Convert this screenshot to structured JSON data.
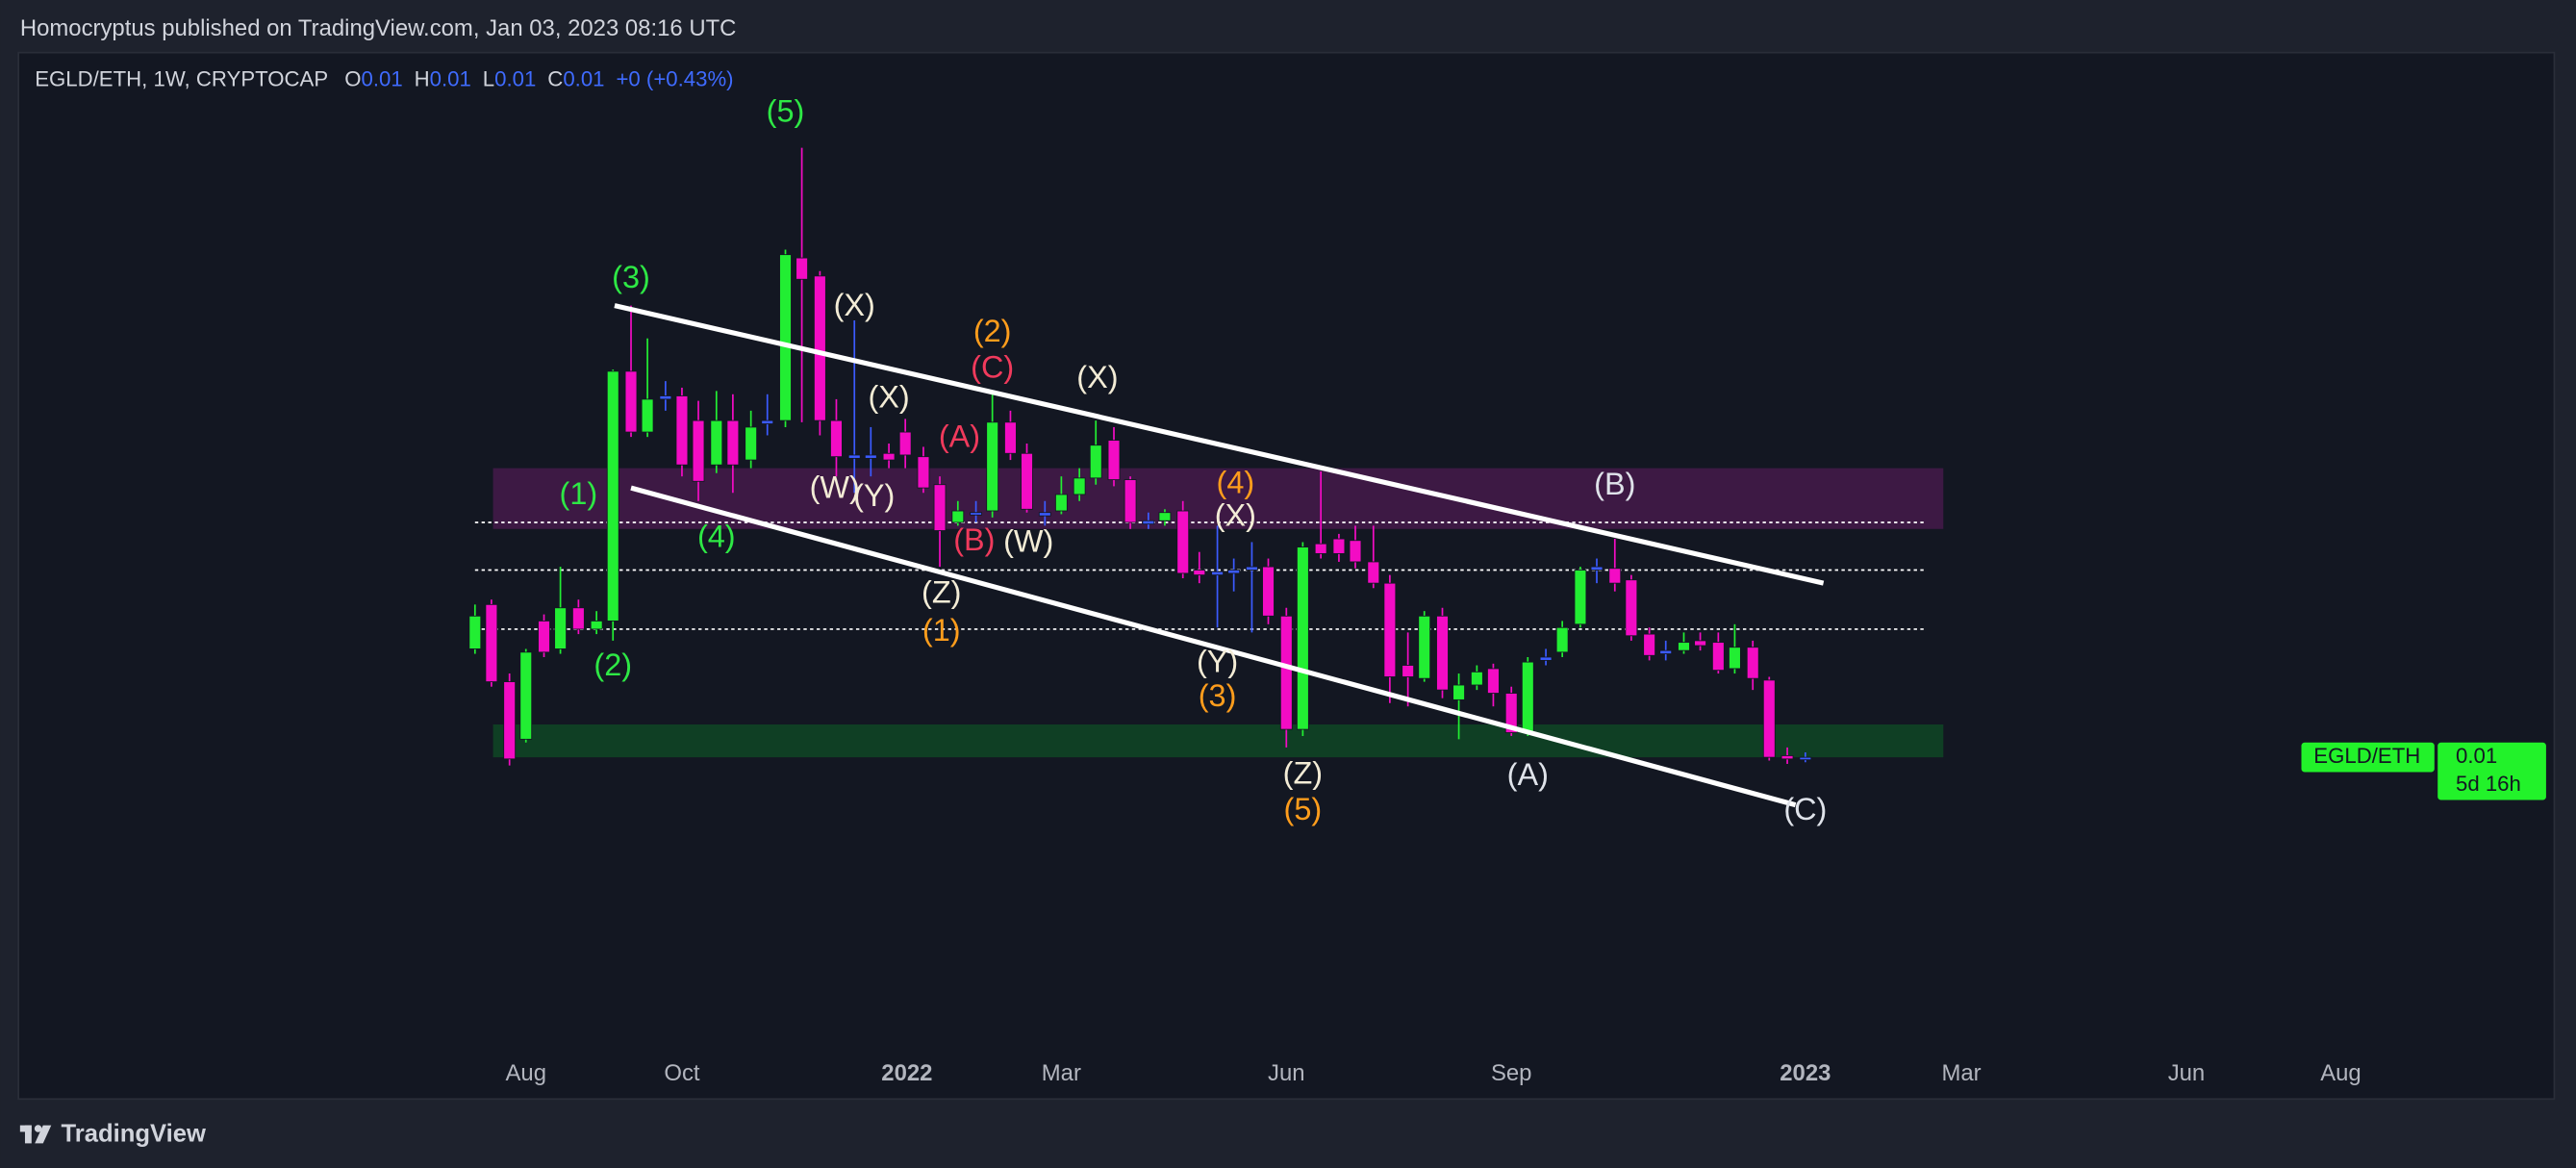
{
  "header": {
    "attribution": "Homocryptus published on TradingView.com, Jan 03, 2023 08:16 UTC"
  },
  "legend": {
    "symbol": "EGLD/ETH, 1W, CRYPTOCAP",
    "ohlc": [
      {
        "label": "O",
        "value": "0.01"
      },
      {
        "label": "H",
        "value": "0.01"
      },
      {
        "label": "L",
        "value": "0.01"
      },
      {
        "label": "C",
        "value": "0.01"
      }
    ],
    "change": "+0 (+0.43%)"
  },
  "waves": [
    "(5)",
    "(3)",
    "(1)",
    "(4)",
    "(2)",
    "(X)",
    "(X)",
    "(W)",
    "(Y)",
    "(Z)",
    "(W)",
    "(X)",
    "(X)",
    "(Y)",
    "(Z)",
    "(B)",
    "(A)",
    "(C)",
    "(2)",
    "(1)",
    "(4)",
    "(3)",
    "(5)",
    "(C)",
    "(A)",
    "(B)"
  ],
  "x_axis": [
    "Aug",
    "Oct",
    "2022",
    "Mar",
    "Jun",
    "Sep",
    "2023",
    "Mar",
    "Jun",
    "Aug"
  ],
  "price_tag": {
    "symbol": "EGLD/ETH",
    "price": "0.01",
    "countdown": "5d 16h"
  },
  "footer": {
    "brand": "TradingView"
  }
}
